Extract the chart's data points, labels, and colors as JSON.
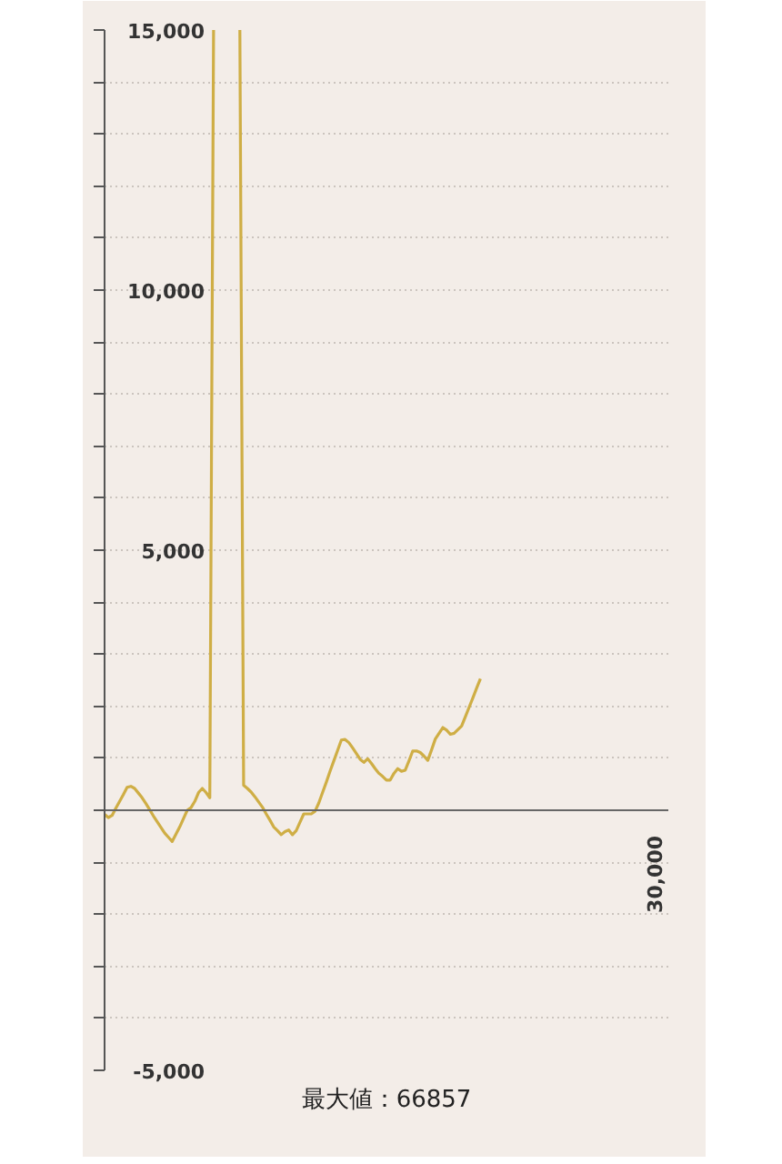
{
  "chart_data": {
    "type": "line",
    "categories": [
      null,
      null,
      null,
      null,
      null,
      null,
      null,
      null,
      null,
      null,
      null,
      null,
      null,
      null,
      null,
      null,
      null,
      null,
      null,
      null,
      null,
      null,
      null,
      null,
      null,
      null,
      null,
      null,
      null,
      null,
      null,
      null,
      null,
      null,
      null,
      null,
      null,
      null,
      null,
      null,
      null,
      null,
      null,
      null,
      null,
      null,
      null,
      null,
      null,
      null,
      null,
      null,
      null,
      null,
      null,
      null,
      null,
      null,
      null,
      null,
      null,
      null,
      null,
      null,
      null,
      null,
      null,
      null,
      null,
      null,
      null,
      null,
      null,
      null,
      null,
      null,
      null,
      null,
      null,
      null,
      null,
      null,
      null,
      null,
      null,
      null,
      null,
      null,
      null,
      null,
      null,
      null,
      null,
      null,
      null,
      null,
      null,
      null,
      null,
      null,
      null,
      null,
      null,
      null,
      null,
      null,
      null,
      null,
      null,
      null,
      null,
      null,
      null,
      null,
      null,
      null,
      null,
      null,
      null,
      null,
      null,
      null,
      null,
      null,
      null,
      null,
      null,
      null,
      null,
      null,
      null,
      null,
      null,
      null,
      null,
      null,
      null,
      null,
      null,
      null,
      null,
      null,
      null,
      null,
      null,
      null,
      null,
      null,
      null,
      null,
      null
    ],
    "series": [
      {
        "color": "#cfae45",
        "values": [
          -80,
          -140,
          -100,
          40,
          170,
          300,
          440,
          460,
          420,
          330,
          240,
          130,
          10,
          -110,
          -220,
          -330,
          -440,
          -520,
          -600,
          -460,
          -320,
          -160,
          0,
          50,
          170,
          340,
          420,
          340,
          240,
          15000,
          null,
          null,
          null,
          null,
          null,
          null,
          15000,
          480,
          420,
          350,
          260,
          160,
          60,
          -70,
          -190,
          -320,
          -390,
          -470,
          -410,
          -380,
          -470,
          -390,
          -230,
          -70,
          -70,
          -70,
          -20,
          140,
          340,
          540,
          750,
          950,
          1150,
          1350,
          1360,
          1300,
          1200,
          1090,
          980,
          920,
          990,
          900,
          800,
          710,
          650,
          580,
          580,
          710,
          800,
          750,
          770,
          950,
          1140,
          1140,
          1110,
          1040,
          960,
          1160,
          1370,
          1480,
          1590,
          1540,
          1460,
          1480,
          1550,
          1620,
          1800,
          1980,
          2160,
          2350,
          2530,
          null,
          null,
          null,
          null,
          null,
          null,
          null,
          null,
          null,
          null,
          null,
          null,
          null,
          null,
          null,
          null,
          null,
          null,
          null,
          null,
          null,
          null,
          null,
          null,
          null,
          null,
          null,
          null,
          null,
          null,
          null,
          null,
          null,
          null,
          null,
          null,
          null,
          null,
          null,
          null,
          null,
          null,
          null,
          null,
          null,
          null,
          null,
          null,
          null,
          null
        ]
      }
    ],
    "ylim": [
      -5000,
      15000
    ],
    "yticks": [
      {
        "value": -5000,
        "label": "-5,000"
      },
      {
        "value": -4000,
        "label": null
      },
      {
        "value": -3000,
        "label": null
      },
      {
        "value": -2000,
        "label": null
      },
      {
        "value": -1000,
        "label": null
      },
      {
        "value": 0,
        "label": null
      },
      {
        "value": 1000,
        "label": null
      },
      {
        "value": 2000,
        "label": null
      },
      {
        "value": 3000,
        "label": null
      },
      {
        "value": 4000,
        "label": null
      },
      {
        "value": 5000,
        "label": "5,000"
      },
      {
        "value": 6000,
        "label": null
      },
      {
        "value": 7000,
        "label": null
      },
      {
        "value": 8000,
        "label": null
      },
      {
        "value": 9000,
        "label": null
      },
      {
        "value": 10000,
        "label": "10,000"
      },
      {
        "value": 11000,
        "label": null
      },
      {
        "value": 12000,
        "label": null
      },
      {
        "value": 13000,
        "label": null
      },
      {
        "value": 14000,
        "label": null
      },
      {
        "value": 15000,
        "label": "15,000"
      }
    ],
    "grid": "y",
    "annotations": [
      "30,000",
      "最大値：66857"
    ]
  }
}
